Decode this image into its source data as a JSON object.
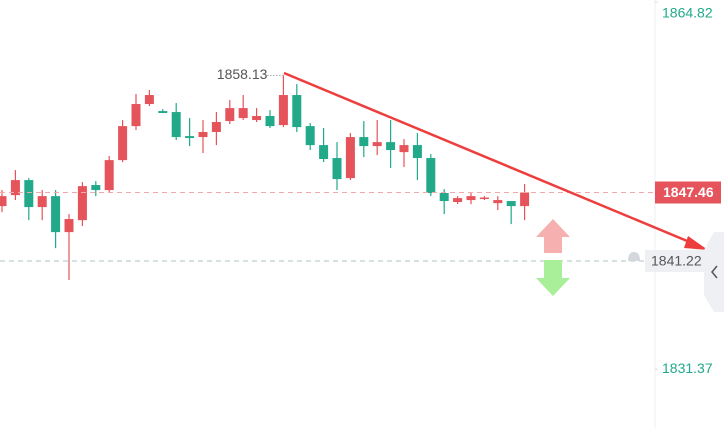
{
  "chart_data": {
    "type": "candlestick",
    "series": [
      {
        "up_color": "#e5535b",
        "down_color": "#21a98a",
        "open": [
          1846.22,
          1847.22,
          1848.59,
          1846.13,
          1847.13,
          1843.85,
          1844.94,
          1848.14,
          1847.68,
          1850.41,
          1853.51,
          1855.52,
          1854.88,
          1854.79,
          1852.6,
          1852.51,
          1852.97,
          1853.97,
          1854.24,
          1854.06,
          1854.43,
          1853.6,
          1856.34,
          1853.51,
          1851.78,
          1850.6,
          1848.77,
          1852.51,
          1851.69,
          1852.05,
          1851.14,
          1851.78,
          1850.6,
          1847.41,
          1846.59,
          1846.77,
          1846.95,
          1846.49,
          1846.68,
          1846.22
        ],
        "high": [
          1847.68,
          1849.5,
          1848.77,
          1847.68,
          1847.68,
          1845.49,
          1848.41,
          1848.5,
          1850.78,
          1854.06,
          1856.43,
          1856.8,
          1855.06,
          1855.61,
          1854.24,
          1854.06,
          1854.79,
          1855.88,
          1856.34,
          1855.15,
          1854.97,
          1858.13,
          1857.34,
          1853.79,
          1853.33,
          1852.05,
          1852.88,
          1853.97,
          1854.06,
          1854.06,
          1852.33,
          1852.88,
          1850.96,
          1847.77,
          1847.13,
          1847.5,
          1847.13,
          1847.13,
          1846.68,
          1848.23
        ],
        "low": [
          1845.67,
          1846.77,
          1844.94,
          1844.94,
          1842.39,
          1839.48,
          1844.4,
          1847.13,
          1847.5,
          1850.23,
          1853.15,
          1855.34,
          1854.7,
          1852.24,
          1851.69,
          1851.05,
          1851.78,
          1853.7,
          1854.06,
          1853.88,
          1853.33,
          1853.42,
          1852.97,
          1851.33,
          1850.23,
          1847.68,
          1848.59,
          1850.69,
          1850.87,
          1849.69,
          1849.78,
          1848.59,
          1847.13,
          1845.49,
          1846.4,
          1846.4,
          1846.77,
          1845.86,
          1844.58,
          1844.94
        ],
        "close": [
          1847.13,
          1848.59,
          1846.13,
          1847.13,
          1843.85,
          1845.04,
          1848.04,
          1847.68,
          1850.41,
          1853.51,
          1855.52,
          1856.34,
          1854.7,
          1852.51,
          1852.42,
          1852.97,
          1853.88,
          1855.15,
          1855.15,
          1854.43,
          1853.51,
          1856.34,
          1853.42,
          1851.78,
          1850.51,
          1848.68,
          1852.51,
          1851.69,
          1852.05,
          1851.33,
          1851.78,
          1850.6,
          1847.41,
          1846.68,
          1846.95,
          1847.13,
          1847.0,
          1846.77,
          1846.22,
          1847.46
        ]
      }
    ],
    "ylim": [
      1826,
      1865
    ],
    "yticks": [
      1864.82,
      1831.37
    ],
    "price_line": {
      "value": 1847.46,
      "color": "#e5535b"
    },
    "alert_line": {
      "value": 1841.22,
      "color": "#a9c6c4"
    },
    "high_annotation": 1858.13
  }
}
